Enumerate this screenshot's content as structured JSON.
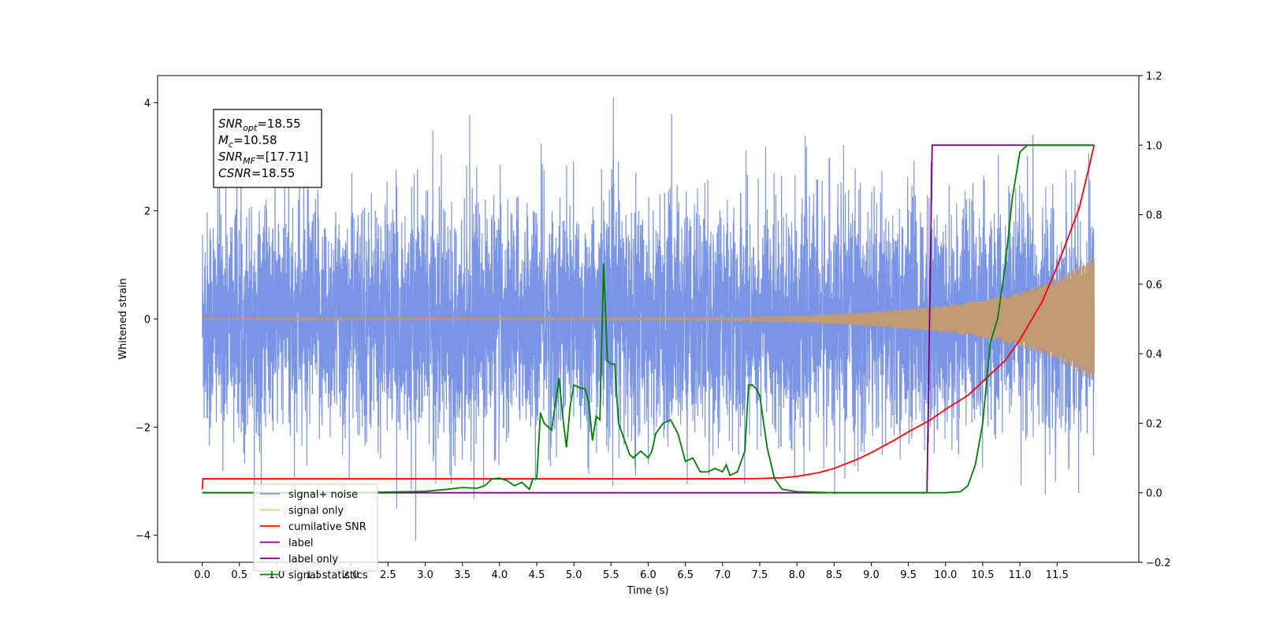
{
  "chart_data": {
    "type": "line",
    "title": "",
    "xlabel": "Time (s)",
    "ylabel": "Whitened strain",
    "y2label": "",
    "xlim": [
      -0.6,
      12.6
    ],
    "ylim": [
      -4.5,
      4.5
    ],
    "y2lim": [
      -0.2,
      1.2
    ],
    "xticks": [
      "0.0",
      "0.5",
      "1.0",
      "1.5",
      "2.0",
      "2.5",
      "3.0",
      "3.5",
      "4.0",
      "4.5",
      "5.0",
      "5.5",
      "6.0",
      "6.5",
      "7.0",
      "7.5",
      "8.0",
      "8.5",
      "9.0",
      "9.5",
      "10.0",
      "10.5",
      "11.0",
      "11.5"
    ],
    "yticks": [
      "4",
      "2",
      "0",
      "−2",
      "−4"
    ],
    "y2ticks": [
      "1.2",
      "1.0",
      "0.8",
      "0.6",
      "0.4",
      "0.2",
      "0.0",
      "−0.2"
    ],
    "grid": false,
    "legend_position": "lower-left",
    "annotation": {
      "lines": [
        {
          "base": "SNR",
          "sub": "opt",
          "value": "=18.55"
        },
        {
          "base": "M",
          "sub": "c",
          "value": "=10.58"
        },
        {
          "base": "SNR",
          "sub": "MF",
          "value": "=[17.71]"
        },
        {
          "base": "CSNR",
          "sub": "",
          "value": "=18.55"
        }
      ]
    },
    "series": [
      {
        "name": "signal+ noise",
        "axis": "left",
        "color": "#7b95e6",
        "description_kind": "noise",
        "x_range": [
          0.0,
          12.0
        ],
        "noise_std": 0.95,
        "noise_max": 4.1
      },
      {
        "name": "signal only",
        "axis": "left",
        "color": "#f5c26b",
        "description_kind": "chirp",
        "x_range": [
          0.0,
          12.0
        ],
        "envelope": [
          [
            0.0,
            0.0
          ],
          [
            7.0,
            0.03
          ],
          [
            8.0,
            0.06
          ],
          [
            9.0,
            0.13
          ],
          [
            10.0,
            0.25
          ],
          [
            10.5,
            0.35
          ],
          [
            11.0,
            0.5
          ],
          [
            11.5,
            0.75
          ],
          [
            12.0,
            1.15
          ]
        ]
      },
      {
        "name": "cumilative SNR",
        "axis": "right",
        "color": "#ff0000",
        "x": [
          0.0,
          0.01,
          1.0,
          3.0,
          5.0,
          7.0,
          7.5,
          7.8,
          8.0,
          8.3,
          8.5,
          8.8,
          9.0,
          9.3,
          9.5,
          9.8,
          10.0,
          10.3,
          10.5,
          10.8,
          11.0,
          11.3,
          11.5,
          11.8,
          12.0
        ],
        "y": [
          0.01,
          0.04,
          0.04,
          0.04,
          0.04,
          0.04,
          0.041,
          0.043,
          0.047,
          0.058,
          0.07,
          0.095,
          0.115,
          0.15,
          0.175,
          0.21,
          0.24,
          0.28,
          0.32,
          0.38,
          0.44,
          0.55,
          0.65,
          0.82,
          1.0
        ]
      },
      {
        "name": "label",
        "axis": "right",
        "color": "#7a0080",
        "x": [
          0.0,
          9.75,
          9.82,
          12.0
        ],
        "y": [
          0.0,
          0.0,
          1.0,
          1.0
        ]
      },
      {
        "name": "label only",
        "axis": "right",
        "color": "#7a0080",
        "hidden_line": true,
        "x": [],
        "y": []
      },
      {
        "name": "signal statistics",
        "axis": "right",
        "color": "#008000",
        "x": [
          0.0,
          1.0,
          2.0,
          2.5,
          3.0,
          3.3,
          3.5,
          3.7,
          3.8,
          3.9,
          4.0,
          4.1,
          4.2,
          4.3,
          4.4,
          4.45,
          4.5,
          4.55,
          4.6,
          4.7,
          4.8,
          4.85,
          4.9,
          4.95,
          5.0,
          5.1,
          5.15,
          5.2,
          5.25,
          5.3,
          5.35,
          5.4,
          5.45,
          5.5,
          5.55,
          5.6,
          5.65,
          5.7,
          5.75,
          5.8,
          5.9,
          6.0,
          6.05,
          6.1,
          6.2,
          6.3,
          6.35,
          6.4,
          6.5,
          6.6,
          6.7,
          6.8,
          6.9,
          7.0,
          7.05,
          7.1,
          7.2,
          7.3,
          7.35,
          7.4,
          7.45,
          7.5,
          7.6,
          7.7,
          7.8,
          8.0,
          8.5,
          9.0,
          9.5,
          10.0,
          10.2,
          10.3,
          10.4,
          10.5,
          10.6,
          10.7,
          10.8,
          10.9,
          11.0,
          11.05,
          11.1,
          11.2,
          11.5,
          12.0
        ],
        "y": [
          0.0,
          0.0,
          0.0,
          0.002,
          0.004,
          0.01,
          0.015,
          0.013,
          0.02,
          0.04,
          0.042,
          0.035,
          0.02,
          0.03,
          0.01,
          0.04,
          0.04,
          0.23,
          0.2,
          0.18,
          0.33,
          0.22,
          0.13,
          0.25,
          0.31,
          0.3,
          0.3,
          0.26,
          0.15,
          0.22,
          0.21,
          0.66,
          0.38,
          0.37,
          0.37,
          0.2,
          0.17,
          0.14,
          0.11,
          0.1,
          0.12,
          0.1,
          0.12,
          0.17,
          0.2,
          0.21,
          0.19,
          0.17,
          0.09,
          0.1,
          0.06,
          0.06,
          0.07,
          0.06,
          0.08,
          0.05,
          0.06,
          0.12,
          0.31,
          0.31,
          0.3,
          0.28,
          0.13,
          0.04,
          0.01,
          0.003,
          0.0,
          0.0,
          0.0,
          0.0,
          0.003,
          0.02,
          0.08,
          0.2,
          0.43,
          0.5,
          0.65,
          0.85,
          0.98,
          0.99,
          1.0,
          1.0,
          1.0,
          1.0
        ]
      }
    ]
  }
}
